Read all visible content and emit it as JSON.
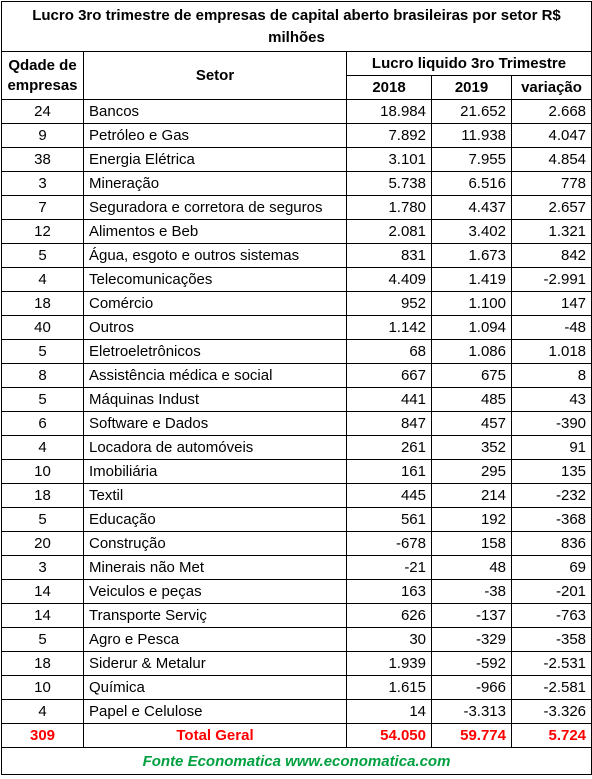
{
  "chart_data": {
    "type": "table",
    "title": "Lucro 3ro trimestre de empresas de capital aberto brasileiras por setor R$ milhões",
    "header": {
      "qty": "Qdade de empresas",
      "sector": "Setor",
      "group": "Lucro liquido 3ro Trimestre",
      "y2018": "2018",
      "y2019": "2019",
      "change": "variação"
    },
    "rows": [
      {
        "qty": "24",
        "sector": "Bancos",
        "y2018": "18.984",
        "y2019": "21.652",
        "change": "2.668"
      },
      {
        "qty": "9",
        "sector": "Petróleo e Gas",
        "y2018": "7.892",
        "y2019": "11.938",
        "change": "4.047"
      },
      {
        "qty": "38",
        "sector": "Energia Elétrica",
        "y2018": "3.101",
        "y2019": "7.955",
        "change": "4.854"
      },
      {
        "qty": "3",
        "sector": "Mineração",
        "y2018": "5.738",
        "y2019": "6.516",
        "change": "778"
      },
      {
        "qty": "7",
        "sector": "Seguradora e corretora de seguros",
        "y2018": "1.780",
        "y2019": "4.437",
        "change": "2.657"
      },
      {
        "qty": "12",
        "sector": "Alimentos e Beb",
        "y2018": "2.081",
        "y2019": "3.402",
        "change": "1.321"
      },
      {
        "qty": "5",
        "sector": "Água, esgoto e outros sistemas",
        "y2018": "831",
        "y2019": "1.673",
        "change": "842"
      },
      {
        "qty": "4",
        "sector": "Telecomunicações",
        "y2018": "4.409",
        "y2019": "1.419",
        "change": "-2.991"
      },
      {
        "qty": "18",
        "sector": "Comércio",
        "y2018": "952",
        "y2019": "1.100",
        "change": "147"
      },
      {
        "qty": "40",
        "sector": "Outros",
        "y2018": "1.142",
        "y2019": "1.094",
        "change": "-48"
      },
      {
        "qty": "5",
        "sector": "Eletroeletrônicos",
        "y2018": "68",
        "y2019": "1.086",
        "change": "1.018"
      },
      {
        "qty": "8",
        "sector": "Assistência médica e social",
        "y2018": "667",
        "y2019": "675",
        "change": "8"
      },
      {
        "qty": "5",
        "sector": "Máquinas Indust",
        "y2018": "441",
        "y2019": "485",
        "change": "43"
      },
      {
        "qty": "6",
        "sector": "Software e Dados",
        "y2018": "847",
        "y2019": "457",
        "change": "-390"
      },
      {
        "qty": "4",
        "sector": "Locadora de automóveis",
        "y2018": "261",
        "y2019": "352",
        "change": "91"
      },
      {
        "qty": "10",
        "sector": "Imobiliária",
        "y2018": "161",
        "y2019": "295",
        "change": "135"
      },
      {
        "qty": "18",
        "sector": "Textil",
        "y2018": "445",
        "y2019": "214",
        "change": "-232"
      },
      {
        "qty": "5",
        "sector": "Educação",
        "y2018": "561",
        "y2019": "192",
        "change": "-368"
      },
      {
        "qty": "20",
        "sector": "Construção",
        "y2018": "-678",
        "y2019": "158",
        "change": "836"
      },
      {
        "qty": "3",
        "sector": "Minerais não Met",
        "y2018": "-21",
        "y2019": "48",
        "change": "69"
      },
      {
        "qty": "14",
        "sector": "Veiculos e peças",
        "y2018": "163",
        "y2019": "-38",
        "change": "-201"
      },
      {
        "qty": "14",
        "sector": "Transporte Serviç",
        "y2018": "626",
        "y2019": "-137",
        "change": "-763"
      },
      {
        "qty": "5",
        "sector": "Agro e Pesca",
        "y2018": "30",
        "y2019": "-329",
        "change": "-358"
      },
      {
        "qty": "18",
        "sector": "Siderur & Metalur",
        "y2018": "1.939",
        "y2019": "-592",
        "change": "-2.531"
      },
      {
        "qty": "10",
        "sector": "Química",
        "y2018": "1.615",
        "y2019": "-966",
        "change": "-2.581"
      },
      {
        "qty": "4",
        "sector": "Papel e Celulose",
        "y2018": "14",
        "y2019": "-3.313",
        "change": "-3.326"
      }
    ],
    "total": {
      "qty": "309",
      "sector": "Total Geral",
      "y2018": "54.050",
      "y2019": "59.774",
      "change": "5.724"
    },
    "source": "Fonte Economatica www.economatica.com"
  },
  "colors": {
    "total_text": "#ff0000",
    "source_text": "#00a040",
    "border": "#000000"
  }
}
